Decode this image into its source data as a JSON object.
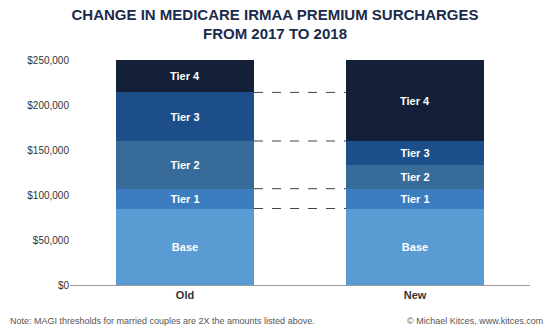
{
  "chart_data": {
    "type": "bar",
    "title": "CHANGE IN MEDICARE IRMAA PREMIUM SURCHARGES\nFROM 2017 TO 2018",
    "categories": [
      "Old",
      "New"
    ],
    "stacked": true,
    "grid": false,
    "series": [
      {
        "name": "Base",
        "color": "#5a9bd3",
        "values": [
          85000,
          85000
        ]
      },
      {
        "name": "Tier 1",
        "color": "#3c7dc0",
        "values": [
          22000,
          22000
        ]
      },
      {
        "name": "Tier 2",
        "color": "#376b99",
        "values": [
          53000,
          26500
        ]
      },
      {
        "name": "Tier 3",
        "color": "#1c4f8a",
        "values": [
          54000,
          26500
        ]
      },
      {
        "name": "Tier 4",
        "color": "#141f38",
        "values": [
          36000,
          90000
        ]
      }
    ],
    "ylim": [
      0,
      250000
    ],
    "yticks": [
      {
        "value": 0,
        "label": "$0"
      },
      {
        "value": 50000,
        "label": "$50,000"
      },
      {
        "value": 100000,
        "label": "$100,000"
      },
      {
        "value": 150000,
        "label": "$150,000"
      },
      {
        "value": 200000,
        "label": "$200,000"
      },
      {
        "value": 250000,
        "label": "$250,000"
      }
    ],
    "annotations": [
      "Note: MAGI thresholds for married couples are 2X the amounts listed above.",
      "© Michael Kitces, www.kitces.com"
    ]
  }
}
